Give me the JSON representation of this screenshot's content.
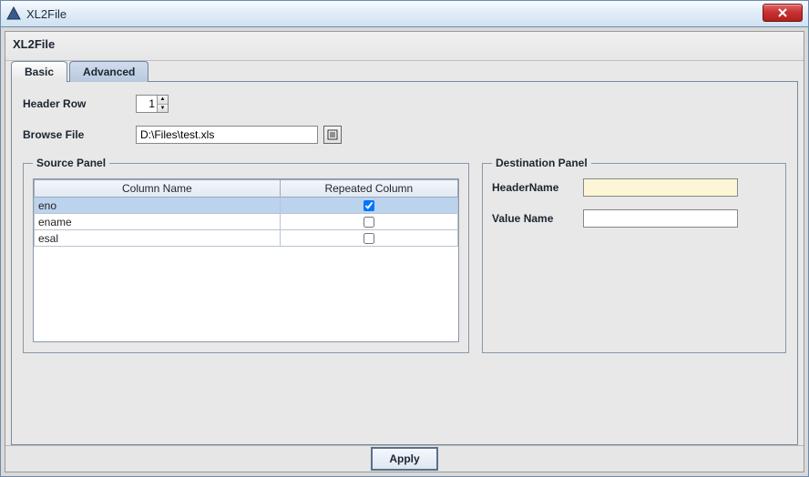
{
  "window": {
    "title": "XL2File",
    "close_symbol": "X"
  },
  "dialog": {
    "title": "XL2File"
  },
  "tabs": {
    "basic": "Basic",
    "advanced": "Advanced",
    "active": "advanced"
  },
  "form": {
    "header_row_label": "Header Row",
    "header_row_value": "1",
    "browse_file_label": "Browse File",
    "browse_file_value": "D:\\Files\\test.xls"
  },
  "source_panel": {
    "legend": "Source Panel",
    "columns": {
      "name": "Column Name",
      "repeated": "Repeated Column"
    },
    "rows": [
      {
        "name": "eno",
        "repeated": true,
        "selected": true
      },
      {
        "name": "ename",
        "repeated": false,
        "selected": false
      },
      {
        "name": "esal",
        "repeated": false,
        "selected": false
      }
    ]
  },
  "dest_panel": {
    "legend": "Destination Panel",
    "header_name_label": "HeaderName",
    "header_name_value": "",
    "value_name_label": "Value Name",
    "value_name_value": ""
  },
  "buttons": {
    "apply": "Apply"
  },
  "colors": {
    "titlebar_border": "#6f8ba8",
    "close_bg": "#c83232",
    "panel_border": "#8a98a8",
    "selected_row": "#bcd3ee",
    "highlight_field": "#fdf6d6",
    "tab_active_bg": "#c4d4e6"
  }
}
